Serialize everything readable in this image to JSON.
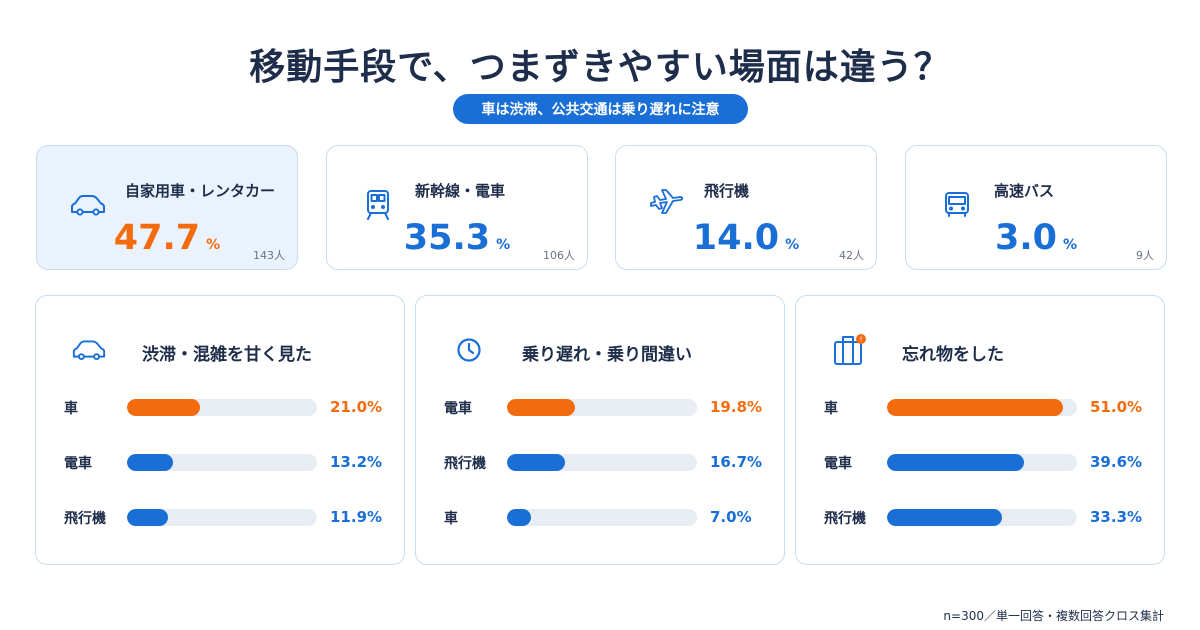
{
  "title": "移動手段で、つまずきやすい場面は違う？",
  "subtitle": "車は渋滞、公共交通は乗り遅れに注意",
  "colors": {
    "accent_blue": "#1a6fd6",
    "accent_orange": "#f26b0f",
    "text_dark": "#1e2d4a",
    "card_border": "#c9dcf2",
    "highlight_bg": "#eaf3fd",
    "track": "#e8edf4"
  },
  "top_cards": [
    {
      "name": "自家用車・レンタカー",
      "value": "47.7",
      "unit": "%",
      "count": "143人",
      "icon": "car-icon",
      "highlight": true
    },
    {
      "name": "新幹線・電車",
      "value": "35.3",
      "unit": "%",
      "count": "106人",
      "icon": "train-icon",
      "highlight": false
    },
    {
      "name": "飛行機",
      "value": "14.0",
      "unit": "%",
      "count": "42人",
      "icon": "airplane-icon",
      "highlight": false
    },
    {
      "name": "高速バス",
      "value": "3.0",
      "unit": "%",
      "count": "9人",
      "icon": "bus-icon",
      "highlight": false
    }
  ],
  "panels": [
    {
      "title": "渋滞・混雑を甘く見た",
      "icon": "car-icon",
      "rows": [
        {
          "label": "車",
          "value_text": "21.0%"
        },
        {
          "label": "電車",
          "value_text": "13.2%"
        },
        {
          "label": "飛行機",
          "value_text": "11.9%"
        }
      ]
    },
    {
      "title": "乗り遅れ・乗り間違い",
      "icon": "clock-icon",
      "rows": [
        {
          "label": "電車",
          "value_text": "19.8%"
        },
        {
          "label": "飛行機",
          "value_text": "16.7%"
        },
        {
          "label": "車",
          "value_text": "7.0%"
        }
      ]
    },
    {
      "title": "忘れ物をした",
      "icon": "suitcase-icon",
      "rows": [
        {
          "label": "車",
          "value_text": "51.0%"
        },
        {
          "label": "電車",
          "value_text": "39.6%"
        },
        {
          "label": "飛行機",
          "value_text": "33.3%"
        }
      ]
    }
  ],
  "footnote": "n=300／単一回答・複数回答クロス集計",
  "chart_data": [
    {
      "type": "bar",
      "categories": [
        "自家用車・レンタカー",
        "新幹線・電車",
        "飛行機",
        "高速バス"
      ],
      "values": [
        47.7,
        35.3,
        14.0,
        3.0
      ],
      "counts": [
        143,
        106,
        42,
        9
      ],
      "unit": "%"
    },
    {
      "type": "bar",
      "title": "渋滞・混雑を甘く見た",
      "categories": [
        "車",
        "電車",
        "飛行機"
      ],
      "values": [
        21.0,
        13.2,
        11.9
      ],
      "ylim": [
        0,
        55
      ]
    },
    {
      "type": "bar",
      "title": "乗り遅れ・乗り間違い",
      "categories": [
        "電車",
        "飛行機",
        "車"
      ],
      "values": [
        19.8,
        16.7,
        7.0
      ],
      "ylim": [
        0,
        55
      ]
    },
    {
      "type": "bar",
      "title": "忘れ物をした",
      "categories": [
        "車",
        "電車",
        "飛行機"
      ],
      "values": [
        51.0,
        39.6,
        33.3
      ],
      "ylim": [
        0,
        55
      ]
    }
  ]
}
